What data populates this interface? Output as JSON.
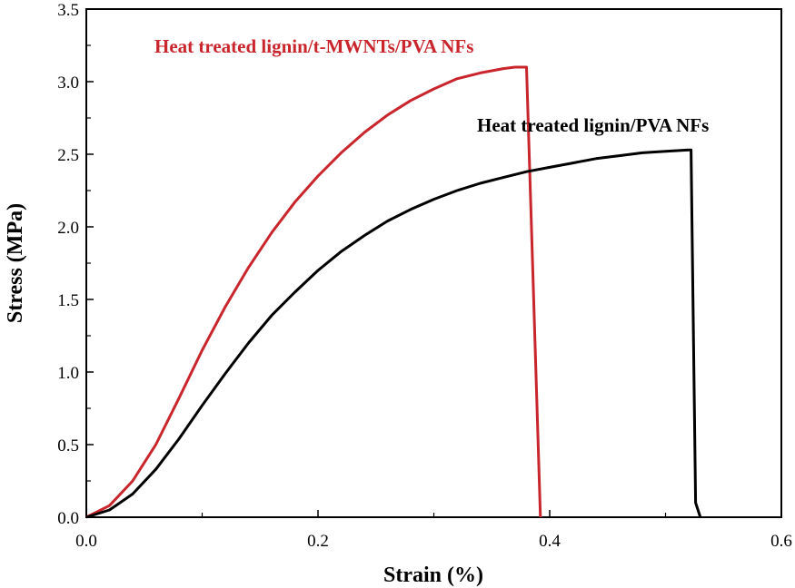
{
  "chart_data": {
    "type": "line",
    "xlabel": "Strain (%)",
    "ylabel": "Stress (MPa)",
    "xlim": [
      0.0,
      0.6
    ],
    "ylim": [
      0.0,
      3.5
    ],
    "x_ticks": [
      "0.0",
      "0.2",
      "0.4",
      "0.6"
    ],
    "y_ticks": [
      "0.0",
      "0.5",
      "1.0",
      "1.5",
      "2.0",
      "2.5",
      "3.0",
      "3.5"
    ],
    "grid": false,
    "series": [
      {
        "name": "Heat treated lignin/t-MWNTs/PVA NFs",
        "color": "#c8262c",
        "x": [
          0.0,
          0.02,
          0.04,
          0.06,
          0.08,
          0.1,
          0.12,
          0.14,
          0.16,
          0.18,
          0.2,
          0.22,
          0.24,
          0.26,
          0.28,
          0.3,
          0.32,
          0.34,
          0.36,
          0.37,
          0.38,
          0.392
        ],
        "y": [
          0.0,
          0.08,
          0.25,
          0.5,
          0.82,
          1.15,
          1.45,
          1.72,
          1.96,
          2.17,
          2.35,
          2.51,
          2.65,
          2.77,
          2.87,
          2.95,
          3.02,
          3.06,
          3.09,
          3.1,
          3.1,
          0.0
        ]
      },
      {
        "name": "Heat treated lignin/PVA NFs",
        "color": "#000000",
        "x": [
          0.0,
          0.02,
          0.04,
          0.06,
          0.08,
          0.1,
          0.12,
          0.14,
          0.16,
          0.18,
          0.2,
          0.22,
          0.24,
          0.26,
          0.28,
          0.3,
          0.32,
          0.34,
          0.36,
          0.38,
          0.4,
          0.42,
          0.44,
          0.46,
          0.48,
          0.5,
          0.52,
          0.522,
          0.526,
          0.53
        ],
        "y": [
          0.0,
          0.05,
          0.16,
          0.33,
          0.54,
          0.77,
          0.99,
          1.2,
          1.39,
          1.55,
          1.7,
          1.83,
          1.94,
          2.04,
          2.12,
          2.19,
          2.25,
          2.3,
          2.34,
          2.38,
          2.41,
          2.44,
          2.47,
          2.49,
          2.51,
          2.52,
          2.53,
          2.53,
          0.1,
          0.0
        ]
      }
    ],
    "annotations": [
      {
        "text": "Heat treated lignin/t-MWNTs/PVA NFs",
        "color": "#c8262c"
      },
      {
        "text": "Heat treated lignin/PVA NFs",
        "color": "#000000"
      }
    ]
  }
}
